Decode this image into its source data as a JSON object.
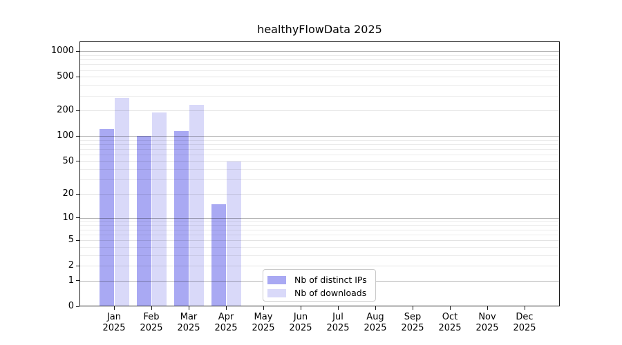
{
  "chart_data": {
    "type": "bar",
    "title": "healthyFlowData 2025",
    "categories": [
      "Jan",
      "Feb",
      "Mar",
      "Apr",
      "May",
      "Jun",
      "Jul",
      "Aug",
      "Sep",
      "Oct",
      "Nov",
      "Dec"
    ],
    "x_year_label": "2025",
    "series": [
      {
        "name": "Nb of distinct IPs",
        "color": "#a9a9f3",
        "values": [
          120,
          100,
          115,
          15,
          0,
          0,
          0,
          0,
          0,
          0,
          0,
          0
        ]
      },
      {
        "name": "Nb of downloads",
        "color": "#d9d9f9",
        "values": [
          280,
          190,
          235,
          50,
          0,
          0,
          0,
          0,
          0,
          0,
          0,
          0
        ]
      }
    ],
    "yscale": "log10(1+x)",
    "yticks": [
      0,
      1,
      2,
      5,
      10,
      20,
      50,
      100,
      200,
      500,
      1000
    ],
    "ylim": [
      0,
      1300
    ],
    "grid": "horizontal",
    "legend_position": "inside-bottom-center",
    "axis_color": "#1a1a1a",
    "major_grid_values": [
      1,
      10,
      100,
      1000
    ]
  }
}
